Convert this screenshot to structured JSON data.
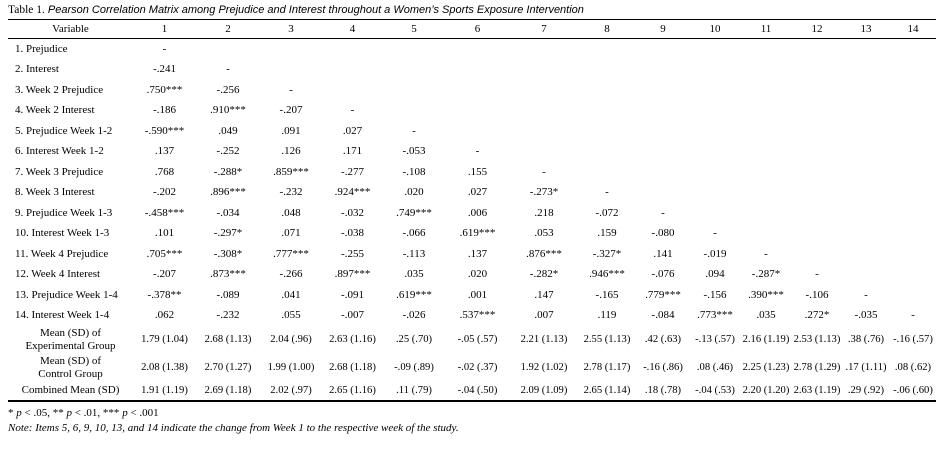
{
  "title": {
    "prefix": "Table 1.",
    "text": "Pearson Correlation Matrix among Prejudice and Interest throughout a Women’s Sports Exposure Intervention"
  },
  "table": {
    "variable_header": "Variable",
    "column_headers": [
      "1",
      "2",
      "3",
      "4",
      "5",
      "6",
      "7",
      "8",
      "9",
      "10",
      "11",
      "12",
      "13",
      "14"
    ],
    "rows": [
      {
        "label": "1. Prejudice",
        "values": [
          "-",
          "",
          "",
          "",
          "",
          "",
          "",
          "",
          "",
          "",
          "",
          "",
          "",
          ""
        ]
      },
      {
        "label": "2. Interest",
        "values": [
          "-.241",
          "-",
          "",
          "",
          "",
          "",
          "",
          "",
          "",
          "",
          "",
          "",
          "",
          ""
        ]
      },
      {
        "label": "3. Week 2 Prejudice",
        "values": [
          ".750***",
          "-.256",
          "-",
          "",
          "",
          "",
          "",
          "",
          "",
          "",
          "",
          "",
          "",
          ""
        ]
      },
      {
        "label": "4. Week 2 Interest",
        "values": [
          "-.186",
          ".910***",
          "-.207",
          "-",
          "",
          "",
          "",
          "",
          "",
          "",
          "",
          "",
          "",
          ""
        ]
      },
      {
        "label": "5. Prejudice Week 1-2",
        "values": [
          "-.590***",
          ".049",
          ".091",
          ".027",
          "-",
          "",
          "",
          "",
          "",
          "",
          "",
          "",
          "",
          ""
        ]
      },
      {
        "label": "6. Interest Week 1-2",
        "values": [
          ".137",
          "-.252",
          ".126",
          ".171",
          "-.053",
          "-",
          "",
          "",
          "",
          "",
          "",
          "",
          "",
          ""
        ]
      },
      {
        "label": "7. Week 3 Prejudice",
        "values": [
          ".768",
          "-.288*",
          ".859***",
          "-.277",
          "-.108",
          ".155",
          "-",
          "",
          "",
          "",
          "",
          "",
          "",
          ""
        ]
      },
      {
        "label": "8. Week 3 Interest",
        "values": [
          "-.202",
          ".896***",
          "-.232",
          ".924***",
          ".020",
          ".027",
          "-.273*",
          "-",
          "",
          "",
          "",
          "",
          "",
          ""
        ]
      },
      {
        "label": "9. Prejudice Week 1-3",
        "values": [
          "-.458***",
          "-.034",
          ".048",
          "-.032",
          ".749***",
          ".006",
          ".218",
          "-.072",
          "-",
          "",
          "",
          "",
          "",
          ""
        ]
      },
      {
        "label": "10. Interest Week 1-3",
        "values": [
          ".101",
          "-.297*",
          ".071",
          "-.038",
          "-.066",
          ".619***",
          ".053",
          ".159",
          "-.080",
          "-",
          "",
          "",
          "",
          ""
        ]
      },
      {
        "label": "11. Week 4 Prejudice",
        "values": [
          ".705***",
          "-.308*",
          ".777***",
          "-.255",
          "-.113",
          ".137",
          ".876***",
          "-.327*",
          ".141",
          "-.019",
          "-",
          "",
          "",
          ""
        ]
      },
      {
        "label": "12. Week 4 Interest",
        "values": [
          "-.207",
          ".873***",
          "-.266",
          ".897***",
          ".035",
          ".020",
          "-.282*",
          ".946***",
          "-.076",
          ".094",
          "-.287*",
          "-",
          "",
          ""
        ]
      },
      {
        "label": "13. Prejudice Week 1-4",
        "values": [
          "-.378**",
          "-.089",
          ".041",
          "-.091",
          ".619***",
          ".001",
          ".147",
          "-.165",
          ".779***",
          "-.156",
          ".390***",
          "-.106",
          "-",
          ""
        ]
      },
      {
        "label": "14. Interest Week 1-4",
        "values": [
          ".062",
          "-.232",
          ".055",
          "-.007",
          "-.026",
          ".537***",
          ".007",
          ".119",
          "-.084",
          ".773***",
          ".035",
          ".272*",
          "-.035",
          "-"
        ]
      }
    ],
    "summary_rows": [
      {
        "label_lines": [
          "Mean (SD) of",
          "Experimental Group"
        ],
        "values": [
          "1.79 (1.04)",
          "2.68 (1.13)",
          "2.04 (.96)",
          "2.63 (1.16)",
          ".25 (.70)",
          "-.05 (.57)",
          "2.21 (1.13)",
          "2.55 (1.13)",
          ".42 (.63)",
          "-.13 (.57)",
          "2.16 (1.19)",
          "2.53 (1.13)",
          ".38 (.76)",
          "-.16 (.57)"
        ]
      },
      {
        "label_lines": [
          "Mean (SD) of",
          "Control Group"
        ],
        "values": [
          "2.08 (1.38)",
          "2.70 (1.27)",
          "1.99 (1.00)",
          "2.68 (1.18)",
          "-.09 (.89)",
          "-.02 (.37)",
          "1.92 (1.02)",
          "2.78 (1.17)",
          "-.16 (.86)",
          ".08 (.46)",
          "2.25 (1.23)",
          "2.78 (1.29)",
          ".17 (1.11)",
          ".08 (.62)"
        ]
      },
      {
        "label_lines": [
          "Combined Mean (SD)"
        ],
        "values": [
          "1.91 (1.19)",
          "2.69 (1.18)",
          "2.02 (.97)",
          "2.65 (1.16)",
          ".11 (.79)",
          "-.04 (.50)",
          "2.09 (1.09)",
          "2.65 (1.14)",
          ".18 (.78)",
          "-.04 (.53)",
          "2.20 (1.20)",
          "2.63 (1.19)",
          ".29 (.92)",
          "-.06 (.60)"
        ]
      }
    ]
  },
  "footnotes": {
    "significance_parts": [
      {
        "text": "* ",
        "italic": false
      },
      {
        "text": "p",
        "italic": true
      },
      {
        "text": " < .05, ** ",
        "italic": false
      },
      {
        "text": "p",
        "italic": true
      },
      {
        "text": " < .01, *** ",
        "italic": false
      },
      {
        "text": "p",
        "italic": true
      },
      {
        "text": " < .001",
        "italic": false
      }
    ],
    "note": "Note: Items 5, 6, 9, 10, 13, and 14 indicate the change from Week 1 to the respective week of the study."
  }
}
